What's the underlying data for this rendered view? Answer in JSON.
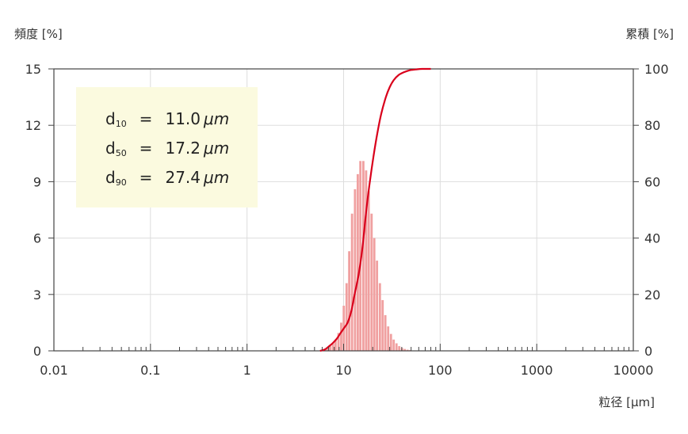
{
  "chart_data": {
    "type": "bar",
    "title": "",
    "ylabel": "頻度 [%]",
    "y2label": "累積 [%]",
    "xlabel": "粒径 [µm]",
    "x_scale": "log",
    "xlim": [
      0.01,
      10000
    ],
    "ylim": [
      0,
      15
    ],
    "y2lim": [
      0,
      100
    ],
    "grid": true,
    "x_ticks": [
      {
        "value": 0.01,
        "label": "0.01"
      },
      {
        "value": 0.1,
        "label": "0.1"
      },
      {
        "value": 1,
        "label": "1"
      },
      {
        "value": 10,
        "label": "10"
      },
      {
        "value": 100,
        "label": "100"
      },
      {
        "value": 1000,
        "label": "1000"
      },
      {
        "value": 10000,
        "label": "10000"
      }
    ],
    "y_ticks": [
      {
        "value": 0,
        "label": "0"
      },
      {
        "value": 3,
        "label": "3"
      },
      {
        "value": 6,
        "label": "6"
      },
      {
        "value": 9,
        "label": "9"
      },
      {
        "value": 12,
        "label": "12"
      },
      {
        "value": 15,
        "label": "15"
      }
    ],
    "y2_ticks": [
      {
        "value": 0,
        "label": "0"
      },
      {
        "value": 20,
        "label": "20"
      },
      {
        "value": 40,
        "label": "40"
      },
      {
        "value": 60,
        "label": "60"
      },
      {
        "value": 80,
        "label": "80"
      },
      {
        "value": 100,
        "label": "100"
      }
    ],
    "series": [
      {
        "kind": "bar",
        "color": "#f0a0a0",
        "x": [
          6.0,
          6.4,
          6.8,
          7.3,
          7.8,
          8.3,
          8.9,
          9.5,
          10.1,
          10.8,
          11.5,
          12.3,
          13.2,
          14.1,
          15.0,
          16.1,
          17.2,
          18.3,
          19.6,
          20.9,
          22.3,
          23.9,
          25.5,
          27.2,
          29.1,
          31.1,
          33.2,
          35.5,
          37.9,
          40.5,
          43.2,
          46.2,
          49.3,
          52.7,
          56.3
        ],
        "y": [
          0.05,
          0.1,
          0.15,
          0.25,
          0.4,
          0.6,
          0.95,
          1.5,
          2.4,
          3.6,
          5.3,
          7.3,
          8.6,
          9.4,
          10.1,
          10.1,
          9.6,
          8.5,
          7.3,
          6.0,
          4.8,
          3.6,
          2.7,
          1.9,
          1.3,
          0.9,
          0.6,
          0.4,
          0.25,
          0.15,
          0.1,
          0.06,
          0.04,
          0.02,
          0.01
        ]
      },
      {
        "kind": "line",
        "color": "#d9001b",
        "x": [
          5.7,
          6.4,
          7.0,
          7.7,
          8.5,
          9.3,
          10.2,
          11.0,
          12.0,
          13.0,
          14.3,
          15.6,
          17.2,
          18.7,
          20.4,
          22.3,
          24.5,
          27.4,
          30.0,
          33.0,
          37.0,
          42.0,
          48.0,
          56.0,
          65.0,
          80.0
        ],
        "y": [
          0,
          0.5,
          1.5,
          2.7,
          4.3,
          6.3,
          8.3,
          10,
          14,
          20,
          27,
          36,
          50,
          60,
          69,
          77,
          84,
          90,
          93.5,
          96,
          97.8,
          98.8,
          99.5,
          99.8,
          100,
          100
        ]
      }
    ],
    "annotation": {
      "box_color": "#fbfadf",
      "lines": [
        {
          "prefix": "d",
          "sub": "10",
          "eq": "=",
          "value": "11.0",
          "unit": "μm"
        },
        {
          "prefix": "d",
          "sub": "50",
          "eq": "=",
          "value": "17.2",
          "unit": "μm"
        },
        {
          "prefix": "d",
          "sub": "90",
          "eq": "=",
          "value": "27.4",
          "unit": "μm"
        }
      ]
    }
  }
}
